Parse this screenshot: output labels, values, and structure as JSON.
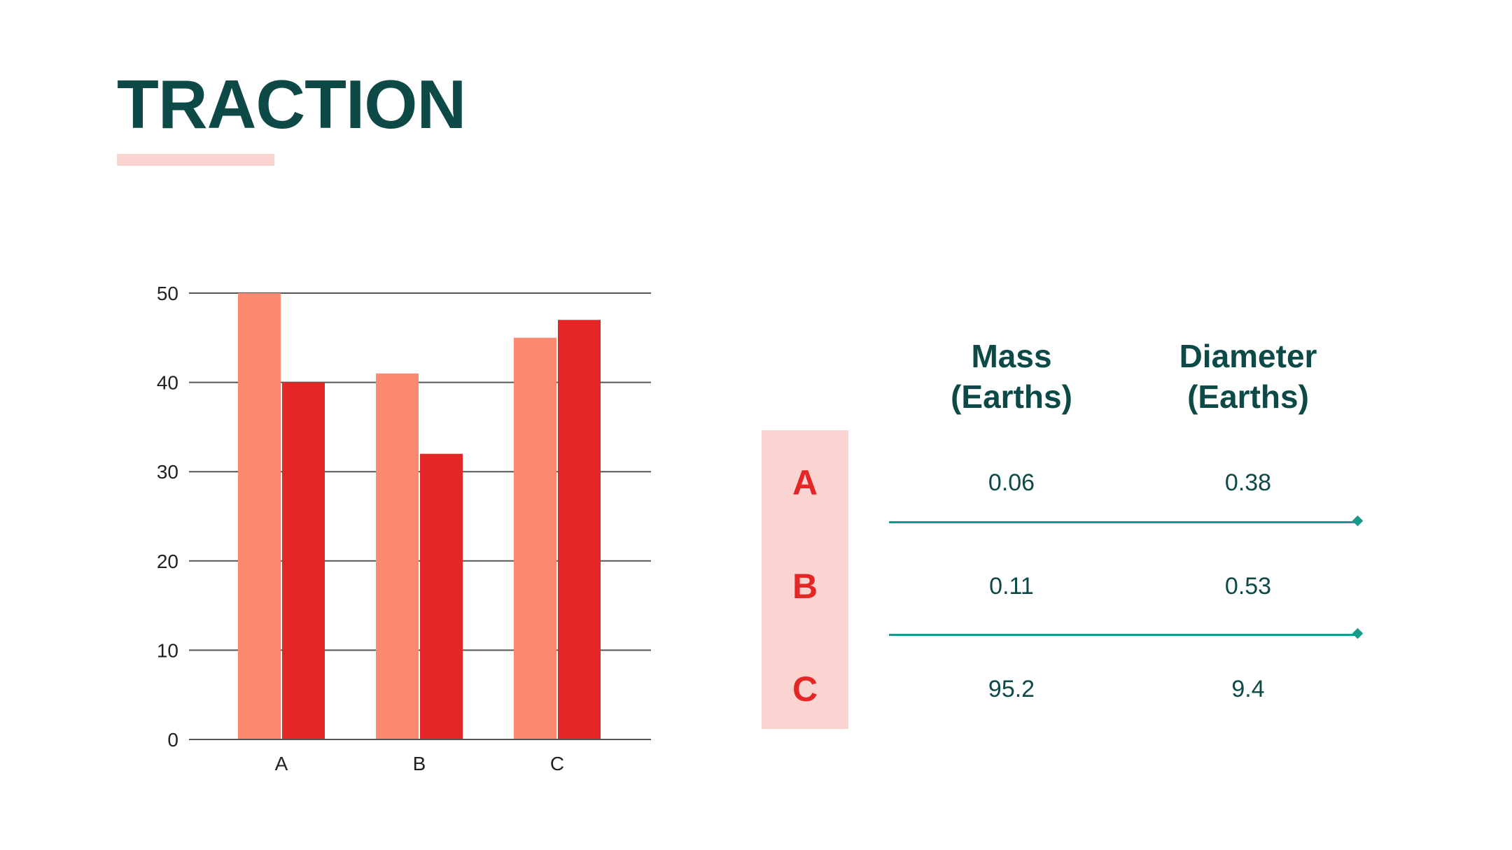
{
  "slide": {
    "title": "TRACTION"
  },
  "colors": {
    "title": "#0d4a47",
    "accent_soft": "#f9d4d0",
    "series_1": "#fb8a70",
    "series_2": "#e32626",
    "grid": "#555555",
    "teal_line": "#1a9a8e",
    "row_letter": "#e32626",
    "table_text": "#0d4a47"
  },
  "chart_data": {
    "type": "bar",
    "categories": [
      "A",
      "B",
      "C"
    ],
    "series": [
      {
        "values": [
          50,
          41,
          45
        ]
      },
      {
        "values": [
          40,
          32,
          47
        ]
      }
    ],
    "title": "",
    "xlabel": "",
    "ylabel": "",
    "ylim": [
      0,
      50
    ],
    "yticks": [
      0,
      10,
      20,
      30,
      40,
      50
    ],
    "grid": true,
    "legend": "none"
  },
  "table": {
    "headers": [
      {
        "line1": "Mass",
        "line2": "(Earths)"
      },
      {
        "line1": "Diameter",
        "line2": "(Earths)"
      }
    ],
    "rows": [
      {
        "label": "A",
        "values": [
          "0.06",
          "0.38"
        ]
      },
      {
        "label": "B",
        "values": [
          "0.11",
          "0.53"
        ]
      },
      {
        "label": "C",
        "values": [
          "95.2",
          "9.4"
        ]
      }
    ]
  }
}
